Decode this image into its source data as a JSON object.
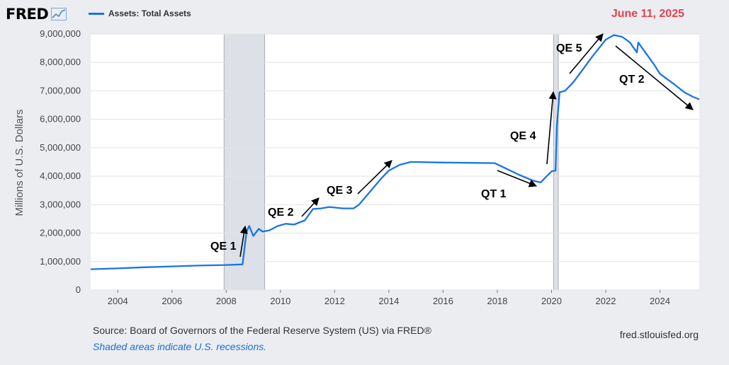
{
  "header": {
    "logo_text": "FRED",
    "logo_icon": "line-graph-icon",
    "series_label": "Assets: Total Assets",
    "date_annotation": "June 11, 2025"
  },
  "footer": {
    "source": "Source: Board of Governors of the Federal Reserve System (US) via FRED®",
    "note": "Shaded areas indicate U.S. recessions.",
    "url": "fred.stlouisfed.org"
  },
  "colors": {
    "series": "#1a73e8",
    "recession": "#dde0e6",
    "date": "#e8414f",
    "note": "#1a6fd6"
  },
  "chart_data": {
    "type": "line",
    "title": "",
    "xlabel": "",
    "ylabel": "Millions of U.S. Dollars",
    "xlim": [
      2003.0,
      2025.45
    ],
    "ylim": [
      0,
      9000000
    ],
    "grid": true,
    "x_ticks": [
      "2004",
      "2006",
      "2008",
      "2010",
      "2012",
      "2014",
      "2016",
      "2018",
      "2020",
      "2022",
      "2024"
    ],
    "y_ticks": [
      "0",
      "1,000,000",
      "2,000,000",
      "3,000,000",
      "4,000,000",
      "5,000,000",
      "6,000,000",
      "7,000,000",
      "8,000,000",
      "9,000,000"
    ],
    "recessions": [
      [
        2007.92,
        2009.42
      ],
      [
        2020.08,
        2020.25
      ]
    ],
    "series": [
      {
        "name": "Assets: Total Assets",
        "x": [
          2003.0,
          2004.0,
          2005.0,
          2006.0,
          2007.0,
          2008.0,
          2008.6,
          2008.75,
          2008.85,
          2009.0,
          2009.2,
          2009.35,
          2009.6,
          2009.9,
          2010.2,
          2010.5,
          2010.9,
          2011.2,
          2011.5,
          2011.8,
          2012.0,
          2012.3,
          2012.7,
          2012.9,
          2013.3,
          2013.7,
          2014.0,
          2014.4,
          2014.8,
          2015.0,
          2016.0,
          2017.0,
          2017.9,
          2018.3,
          2018.8,
          2019.3,
          2019.6,
          2019.8,
          2020.0,
          2020.15,
          2020.2,
          2020.3,
          2020.5,
          2020.8,
          2021.0,
          2021.5,
          2022.0,
          2022.3,
          2022.6,
          2022.9,
          2023.0,
          2023.15,
          2023.2,
          2023.5,
          2023.8,
          2024.0,
          2024.5,
          2024.9,
          2025.2,
          2025.45
        ],
        "y": [
          730000,
          760000,
          800000,
          830000,
          860000,
          880000,
          900000,
          2050000,
          2250000,
          1900000,
          2150000,
          2050000,
          2100000,
          2250000,
          2330000,
          2300000,
          2450000,
          2850000,
          2870000,
          2920000,
          2900000,
          2870000,
          2870000,
          3000000,
          3450000,
          3900000,
          4200000,
          4400000,
          4500000,
          4500000,
          4480000,
          4470000,
          4460000,
          4280000,
          4050000,
          3850000,
          3780000,
          3980000,
          4170000,
          4200000,
          5800000,
          6950000,
          7000000,
          7300000,
          7550000,
          8200000,
          8800000,
          8960000,
          8900000,
          8700000,
          8550000,
          8350000,
          8700000,
          8300000,
          7900000,
          7600000,
          7250000,
          6950000,
          6800000,
          6700000
        ]
      }
    ],
    "annotations": [
      "QE 1",
      "QE 2",
      "QE 3",
      "QT 1",
      "QE 4",
      "QE 5",
      "QT 2"
    ]
  }
}
